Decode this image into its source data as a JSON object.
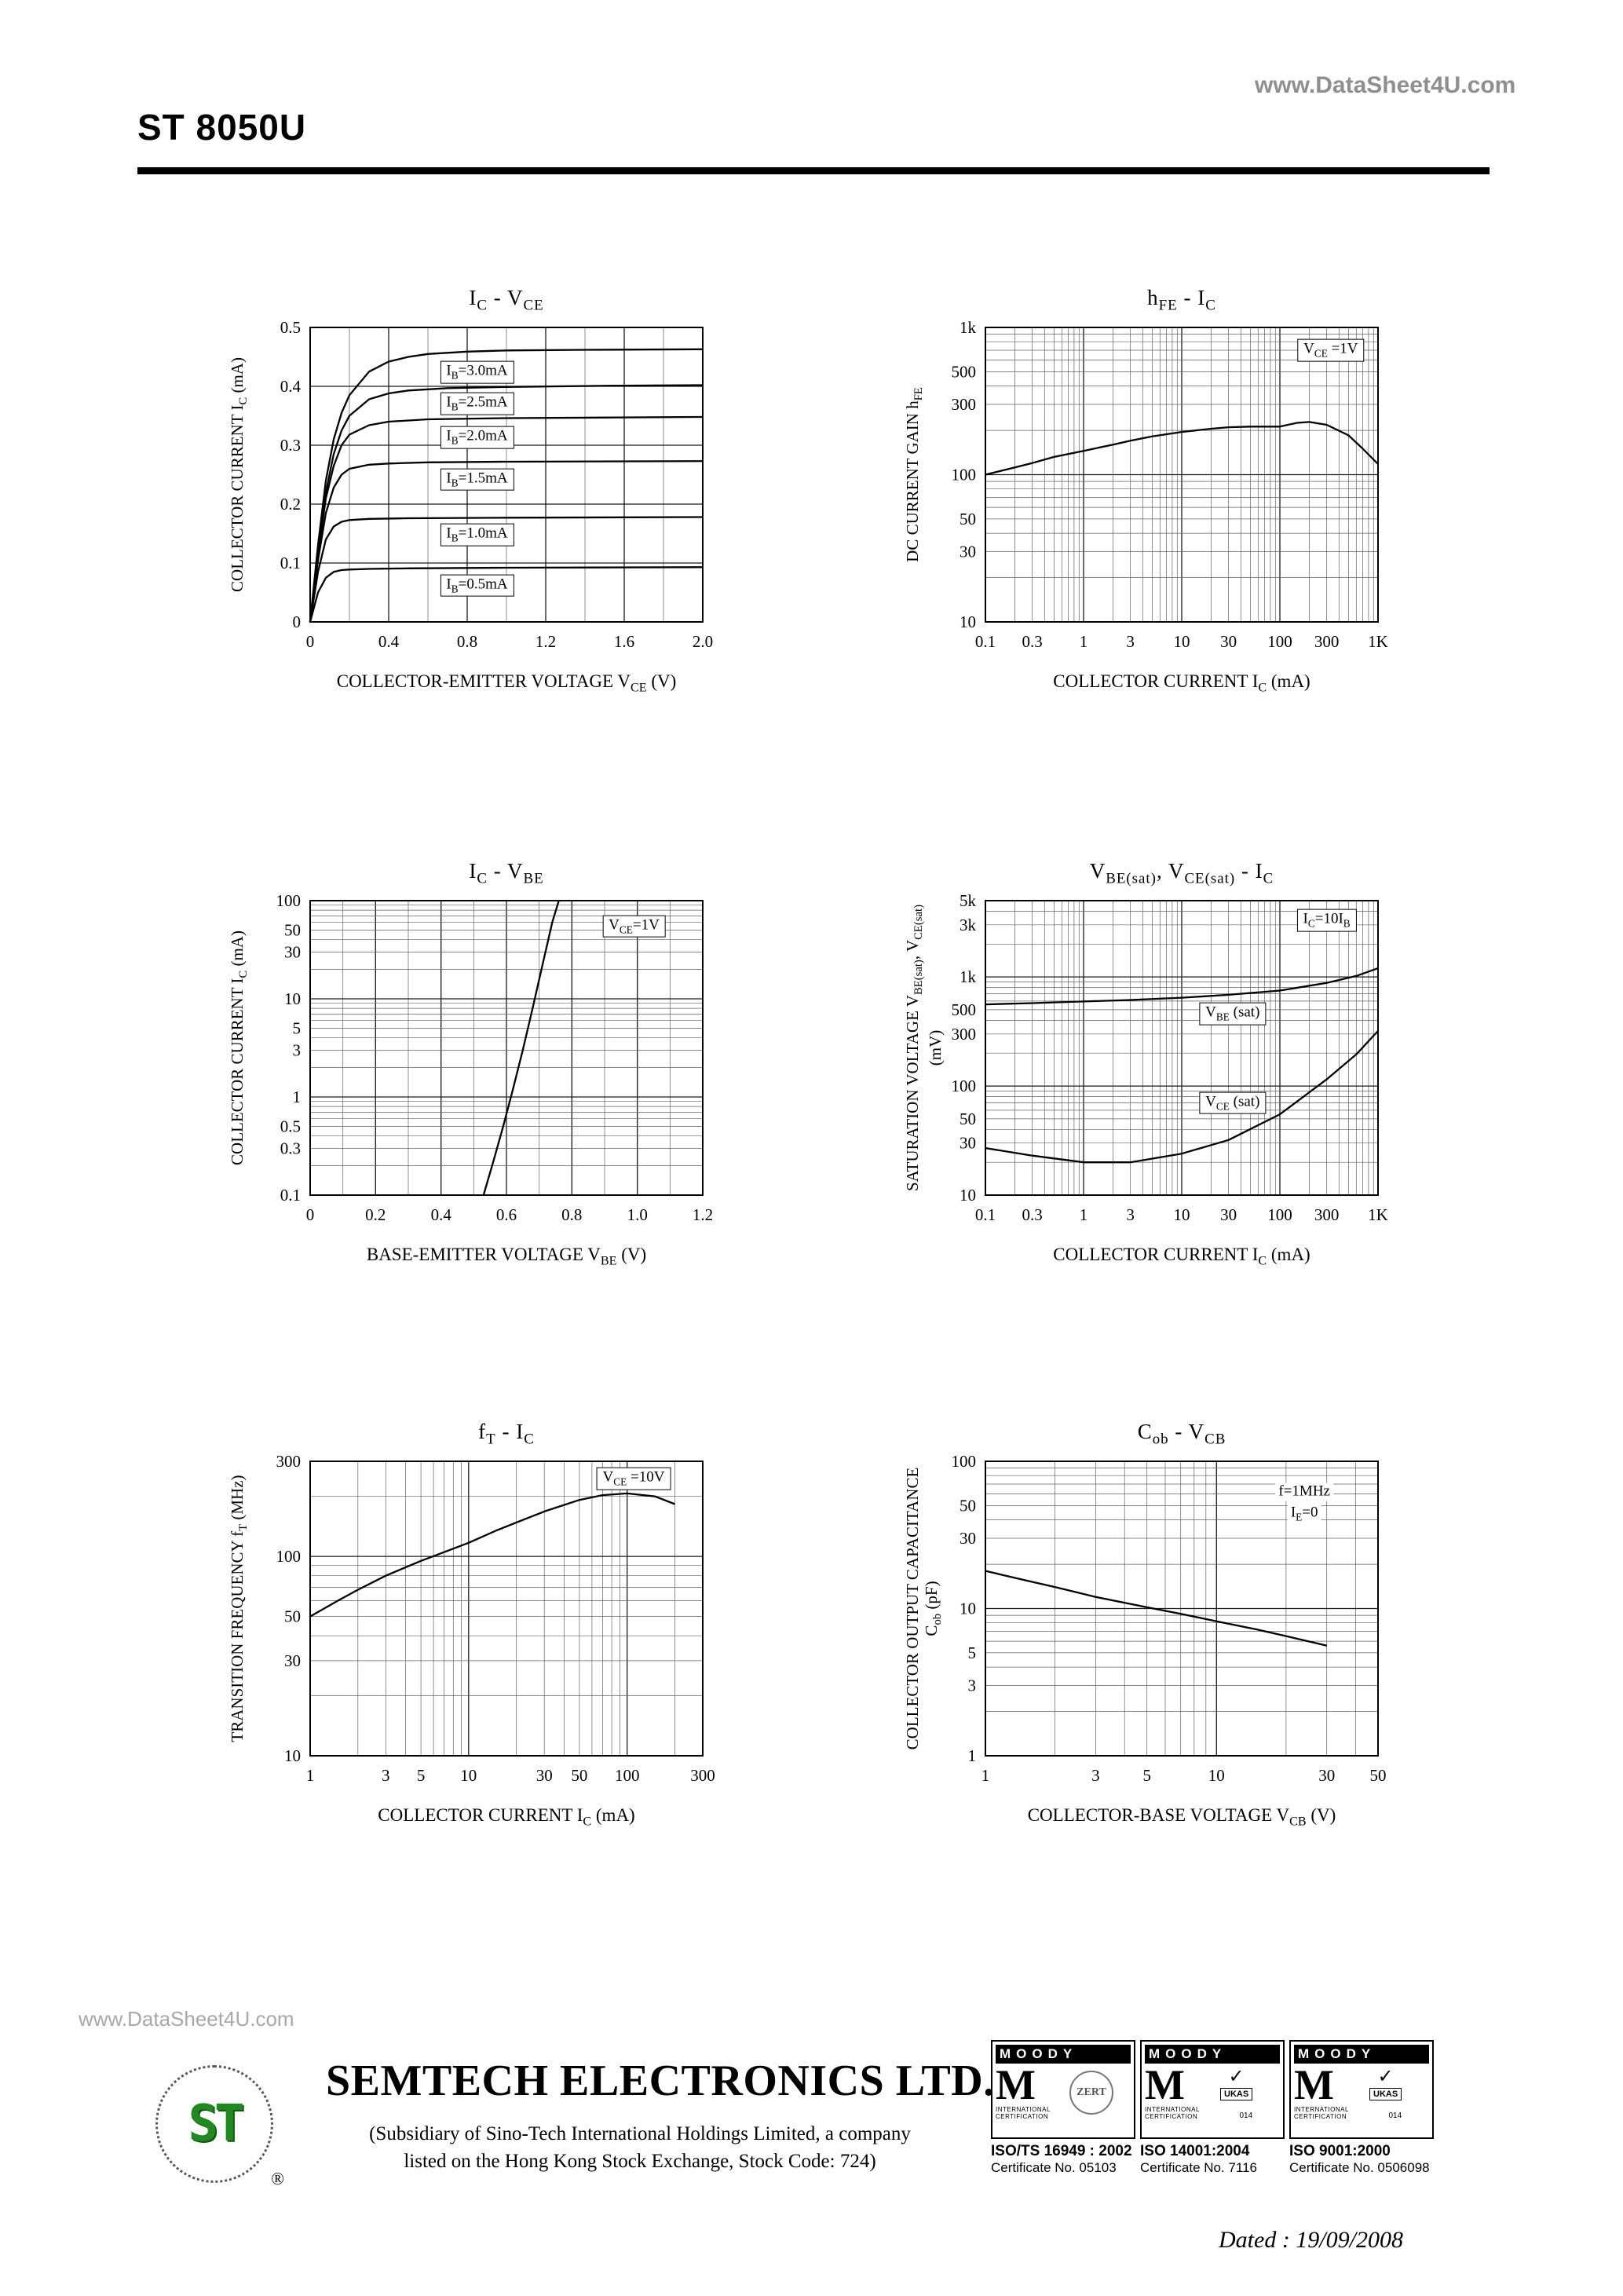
{
  "header": {
    "watermark": "www.DataSheet4U.com",
    "part_number": "ST 8050U"
  },
  "footer": {
    "watermark": "www.DataSheet4U.com",
    "logo_text": "ST",
    "registered": "®",
    "company": "SEMTECH ELECTRONICS LTD.",
    "subsidiary": [
      "(Subsidiary of Sino-Tech International Holdings Limited, a company",
      "listed on the Hong Kong Stock Exchange, Stock Code: 724)"
    ],
    "dated": "Dated : 19/09/2008",
    "certs": [
      {
        "brand": "MOODY",
        "monogram": "M",
        "sub": "INTERNATIONAL CERTIFICATION",
        "badge": "ZERT",
        "badge_mark": "",
        "code": "",
        "iso": "ISO/TS 16949 : 2002",
        "cert_no": "Certificate No. 05103"
      },
      {
        "brand": "MOODY",
        "monogram": "M",
        "sub": "INTERNATIONAL CERTIFICATION",
        "badge": "UKAS",
        "badge_mark": "✓",
        "code": "014",
        "iso": "ISO 14001:2004",
        "cert_no": "Certificate No. 7116"
      },
      {
        "brand": "MOODY",
        "monogram": "M",
        "sub": "INTERNATIONAL CERTIFICATION",
        "badge": "UKAS",
        "badge_mark": "✓",
        "code": "014",
        "iso": "ISO 9001:2000",
        "cert_no": "Certificate No. 0506098"
      }
    ]
  },
  "chart_data": [
    {
      "type": "line",
      "title": "I_{C}  -  V_{CE}",
      "xlabel": "COLLECTOR-EMITTER VOLTAGE V_{CE}  (V)",
      "ylabel": "COLLECTOR CURRENT I_{C}  (mA)",
      "x": {
        "scale": "linear",
        "min": 0,
        "max": 2,
        "ticks": [
          0,
          0.4,
          0.8,
          1.2,
          1.6,
          2
        ],
        "tick_labels": [
          "0",
          "0.4",
          "0.8",
          "1.2",
          "1.6",
          "2.0"
        ],
        "minor": 0.2
      },
      "y": {
        "scale": "linear",
        "min": 0,
        "max": 0.5,
        "ticks": [
          0,
          0.1,
          0.2,
          0.3,
          0.4,
          0.5
        ],
        "tick_labels": [
          "0",
          "0.1",
          "0.2",
          "0.3",
          "0.4",
          "0.5"
        ],
        "minor": null
      },
      "series": [
        {
          "name": "IB=3.0mA",
          "points": [
            [
              0,
              0
            ],
            [
              0.04,
              0.13
            ],
            [
              0.08,
              0.24
            ],
            [
              0.12,
              0.31
            ],
            [
              0.16,
              0.355
            ],
            [
              0.2,
              0.385
            ],
            [
              0.3,
              0.425
            ],
            [
              0.4,
              0.442
            ],
            [
              0.5,
              0.45
            ],
            [
              0.6,
              0.455
            ],
            [
              0.8,
              0.459
            ],
            [
              1,
              0.461
            ],
            [
              1.4,
              0.462
            ],
            [
              2,
              0.463
            ]
          ]
        },
        {
          "name": "IB=2.5mA",
          "points": [
            [
              0,
              0
            ],
            [
              0.04,
              0.12
            ],
            [
              0.08,
              0.22
            ],
            [
              0.12,
              0.285
            ],
            [
              0.16,
              0.325
            ],
            [
              0.2,
              0.35
            ],
            [
              0.3,
              0.378
            ],
            [
              0.4,
              0.388
            ],
            [
              0.5,
              0.393
            ],
            [
              0.7,
              0.397
            ],
            [
              1,
              0.399
            ],
            [
              1.5,
              0.401
            ],
            [
              2,
              0.402
            ]
          ]
        },
        {
          "name": "IB=2.0mA",
          "points": [
            [
              0,
              0
            ],
            [
              0.04,
              0.115
            ],
            [
              0.08,
              0.21
            ],
            [
              0.12,
              0.265
            ],
            [
              0.16,
              0.3
            ],
            [
              0.2,
              0.318
            ],
            [
              0.3,
              0.334
            ],
            [
              0.4,
              0.34
            ],
            [
              0.6,
              0.344
            ],
            [
              1,
              0.346
            ],
            [
              2,
              0.348
            ]
          ]
        },
        {
          "name": "IB=1.5mA",
          "points": [
            [
              0,
              0
            ],
            [
              0.04,
              0.105
            ],
            [
              0.08,
              0.185
            ],
            [
              0.12,
              0.228
            ],
            [
              0.16,
              0.25
            ],
            [
              0.2,
              0.26
            ],
            [
              0.3,
              0.267
            ],
            [
              0.4,
              0.269
            ],
            [
              0.6,
              0.271
            ],
            [
              1,
              0.272
            ],
            [
              2,
              0.273
            ]
          ]
        },
        {
          "name": "IB=1.0mA",
          "points": [
            [
              0,
              0
            ],
            [
              0.04,
              0.085
            ],
            [
              0.08,
              0.14
            ],
            [
              0.12,
              0.162
            ],
            [
              0.16,
              0.17
            ],
            [
              0.2,
              0.173
            ],
            [
              0.3,
              0.175
            ],
            [
              0.5,
              0.176
            ],
            [
              1,
              0.177
            ],
            [
              2,
              0.178
            ]
          ]
        },
        {
          "name": "IB=0.5mA",
          "points": [
            [
              0,
              0
            ],
            [
              0.04,
              0.05
            ],
            [
              0.08,
              0.075
            ],
            [
              0.12,
              0.085
            ],
            [
              0.16,
              0.088
            ],
            [
              0.2,
              0.089
            ],
            [
              0.3,
              0.09
            ],
            [
              0.5,
              0.091
            ],
            [
              1,
              0.092
            ],
            [
              2,
              0.093
            ]
          ]
        }
      ],
      "annotations": [
        {
          "text": "I_{B}=3.0mA",
          "x": 0.85,
          "y": 0.424,
          "boxed": true
        },
        {
          "text": "I_{B}=2.5mA",
          "x": 0.85,
          "y": 0.371,
          "boxed": true
        },
        {
          "text": "I_{B}=2.0mA",
          "x": 0.85,
          "y": 0.313,
          "boxed": true
        },
        {
          "text": "I_{B}=1.5mA",
          "x": 0.85,
          "y": 0.242,
          "boxed": true
        },
        {
          "text": "I_{B}=1.0mA",
          "x": 0.85,
          "y": 0.148,
          "boxed": true
        },
        {
          "text": "I_{B}=0.5mA",
          "x": 0.85,
          "y": 0.062,
          "boxed": true
        }
      ]
    },
    {
      "type": "line",
      "title": "h_{FE}  -  I_{C}",
      "xlabel": "COLLECTOR CURRENT I_{C}  (mA)",
      "ylabel": "DC CURRENT GAIN h_{FE}",
      "x": {
        "scale": "log",
        "min": 0.1,
        "max": 1000,
        "ticks": [
          0.1,
          0.3,
          1,
          3,
          10,
          30,
          100,
          300,
          1000
        ],
        "tick_labels": [
          "0.1",
          "0.3",
          "1",
          "3",
          "10",
          "30",
          "100",
          "300",
          "1K"
        ],
        "minor": null
      },
      "y": {
        "scale": "log",
        "min": 10,
        "max": 1000,
        "ticks": [
          10,
          30,
          50,
          100,
          300,
          500,
          1000
        ],
        "tick_labels": [
          "10",
          "30",
          "50",
          "100",
          "300",
          "500",
          "1k"
        ],
        "minor": null
      },
      "series": [
        {
          "name": "hFE",
          "points": [
            [
              0.1,
              100
            ],
            [
              0.2,
              112
            ],
            [
              0.3,
              120
            ],
            [
              0.5,
              132
            ],
            [
              1,
              145
            ],
            [
              2,
              160
            ],
            [
              3,
              170
            ],
            [
              5,
              182
            ],
            [
              10,
              195
            ],
            [
              20,
              205
            ],
            [
              30,
              210
            ],
            [
              50,
              212
            ],
            [
              100,
              212
            ],
            [
              150,
              225
            ],
            [
              200,
              228
            ],
            [
              300,
              218
            ],
            [
              500,
              185
            ],
            [
              700,
              150
            ],
            [
              1000,
              118
            ]
          ]
        }
      ],
      "annotations": [
        {
          "text": "V_{CE} =1V",
          "x": 330,
          "y": 700,
          "boxed": true
        }
      ]
    },
    {
      "type": "line",
      "title": "I_{C}  -  V_{BE}",
      "xlabel": "BASE-EMITTER VOLTAGE V_{BE}  (V)",
      "ylabel": "COLLECTOR CURRENT I_{C}  (mA)",
      "x": {
        "scale": "linear",
        "min": 0,
        "max": 1.2,
        "ticks": [
          0,
          0.2,
          0.4,
          0.6,
          0.8,
          1,
          1.2
        ],
        "tick_labels": [
          "0",
          "0.2",
          "0.4",
          "0.6",
          "0.8",
          "1.0",
          "1.2"
        ],
        "minor": 0.1
      },
      "y": {
        "scale": "log",
        "min": 0.1,
        "max": 100,
        "ticks": [
          0.1,
          0.3,
          0.5,
          1,
          3,
          5,
          10,
          30,
          50,
          100
        ],
        "tick_labels": [
          "0.1",
          "0.3",
          "0.5",
          "1",
          "3",
          "5",
          "10",
          "30",
          "50",
          "100"
        ],
        "minor": null
      },
      "series": [
        {
          "name": "IC",
          "points": [
            [
              0.53,
              0.1
            ],
            [
              0.56,
              0.22
            ],
            [
              0.59,
              0.5
            ],
            [
              0.62,
              1.2
            ],
            [
              0.65,
              3
            ],
            [
              0.68,
              8
            ],
            [
              0.71,
              22
            ],
            [
              0.74,
              60
            ],
            [
              0.76,
              100
            ]
          ]
        }
      ],
      "annotations": [
        {
          "text": "V_{CE}=1V",
          "x": 0.99,
          "y": 55,
          "boxed": true
        }
      ]
    },
    {
      "type": "line",
      "title": "V_{BE(sat)}, V_{CE(sat)}  -  I_{C}",
      "xlabel": "COLLECTOR CURRENT I_{C}  (mA)",
      "ylabel": "SATURATION VOLTAGE V_{BE(sat)},  V_{CE(sat)}  (mV)",
      "x": {
        "scale": "log",
        "min": 0.1,
        "max": 1000,
        "ticks": [
          0.1,
          0.3,
          1,
          3,
          10,
          30,
          100,
          300,
          1000
        ],
        "tick_labels": [
          "0.1",
          "0.3",
          "1",
          "3",
          "10",
          "30",
          "100",
          "300",
          "1K"
        ],
        "minor": null
      },
      "y": {
        "scale": "log",
        "min": 10,
        "max": 5000,
        "ticks": [
          10,
          30,
          50,
          100,
          300,
          500,
          1000,
          3000,
          5000
        ],
        "tick_labels": [
          "10",
          "30",
          "50",
          "100",
          "300",
          "500",
          "1k",
          "3k",
          "5k"
        ],
        "minor": null
      },
      "series": [
        {
          "name": "VBE(sat)",
          "points": [
            [
              0.1,
              560
            ],
            [
              0.3,
              575
            ],
            [
              1,
              595
            ],
            [
              3,
              615
            ],
            [
              10,
              645
            ],
            [
              30,
              685
            ],
            [
              100,
              750
            ],
            [
              300,
              880
            ],
            [
              600,
              1020
            ],
            [
              1000,
              1200
            ]
          ]
        },
        {
          "name": "VCE(sat)",
          "points": [
            [
              0.1,
              27
            ],
            [
              0.3,
              23
            ],
            [
              1,
              20
            ],
            [
              3,
              20
            ],
            [
              10,
              24
            ],
            [
              30,
              32
            ],
            [
              100,
              55
            ],
            [
              300,
              115
            ],
            [
              600,
              195
            ],
            [
              1000,
              320
            ]
          ]
        }
      ],
      "annotations": [
        {
          "text": "I_{C}=10I_{B}",
          "x": 300,
          "y": 3300,
          "boxed": true
        },
        {
          "text": "V_{BE} (sat)",
          "x": 33,
          "y": 460,
          "boxed": true
        },
        {
          "text": "V_{CE} (sat)",
          "x": 33,
          "y": 70,
          "boxed": true
        }
      ]
    },
    {
      "type": "line",
      "title": "f_{T}  -  I_{C}",
      "xlabel": "COLLECTOR CURRENT I_{C}  (mA)",
      "ylabel": "TRANSITION FREQUENCY f_{T}  (MHz)",
      "x": {
        "scale": "log",
        "min": 1,
        "max": 300,
        "ticks": [
          1,
          3,
          5,
          10,
          30,
          50,
          100,
          300
        ],
        "tick_labels": [
          "1",
          "3",
          "5",
          "10",
          "30",
          "50",
          "100",
          "300"
        ],
        "minor": null
      },
      "y": {
        "scale": "log",
        "min": 10,
        "max": 300,
        "ticks": [
          10,
          30,
          50,
          100,
          300
        ],
        "tick_labels": [
          "10",
          "30",
          "50",
          "100",
          "300"
        ],
        "minor": null
      },
      "series": [
        {
          "name": "fT",
          "points": [
            [
              1,
              50
            ],
            [
              1.5,
              60
            ],
            [
              2,
              68
            ],
            [
              3,
              80
            ],
            [
              5,
              95
            ],
            [
              7,
              105
            ],
            [
              10,
              117
            ],
            [
              15,
              135
            ],
            [
              20,
              148
            ],
            [
              30,
              168
            ],
            [
              50,
              192
            ],
            [
              70,
              203
            ],
            [
              100,
              207
            ],
            [
              150,
              200
            ],
            [
              200,
              183
            ]
          ]
        }
      ],
      "annotations": [
        {
          "text": "V_{CE} =10V",
          "x": 110,
          "y": 245,
          "boxed": true
        }
      ]
    },
    {
      "type": "line",
      "title": "C_{ob}  -  V_{CB}",
      "xlabel": "COLLECTOR-BASE VOLTAGE V_{CB}  (V)",
      "ylabel": "COLLECTOR OUTPUT CAPACITANCE C_{ob}  (pF)",
      "x": {
        "scale": "log",
        "min": 1,
        "max": 50,
        "ticks": [
          1,
          3,
          5,
          10,
          30,
          50
        ],
        "tick_labels": [
          "1",
          "3",
          "5",
          "10",
          "30",
          "50"
        ],
        "minor": null
      },
      "y": {
        "scale": "log",
        "min": 1,
        "max": 100,
        "ticks": [
          1,
          3,
          5,
          10,
          30,
          50,
          100
        ],
        "tick_labels": [
          "1",
          "3",
          "5",
          "10",
          "30",
          "50",
          "100"
        ],
        "minor": null
      },
      "series": [
        {
          "name": "Cob",
          "points": [
            [
              1,
              18
            ],
            [
              1.5,
              15.5
            ],
            [
              2,
              14
            ],
            [
              3,
              12
            ],
            [
              5,
              10.2
            ],
            [
              7,
              9.2
            ],
            [
              10,
              8.2
            ],
            [
              15,
              7.2
            ],
            [
              20,
              6.5
            ],
            [
              30,
              5.6
            ]
          ]
        }
      ],
      "annotations": [
        {
          "text": "f=1MHz",
          "x": 24,
          "y": 62,
          "boxed": false
        },
        {
          "text": "I_{E}=0",
          "x": 24,
          "y": 44,
          "boxed": false
        }
      ]
    }
  ]
}
